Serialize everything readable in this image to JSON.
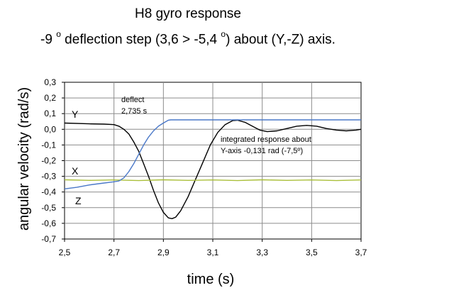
{
  "chart_data": {
    "type": "line",
    "title_line1": "H8 gyro response",
    "title_line2": {
      "part1": "-9 ",
      "sup1": "o",
      "part2": " deflection step (3,6 > -5,4 ",
      "sup2": "o",
      "part3": ") about (Y,-Z) axis."
    },
    "xlabel": "time (s)",
    "ylabel": "angular velocity (rad/s)",
    "xlim": [
      2.5,
      3.7
    ],
    "ylim": [
      -0.7,
      0.3
    ],
    "x_ticks": [
      2.5,
      2.7,
      2.9,
      3.1,
      3.3,
      3.5,
      3.7
    ],
    "x_tick_labels": [
      "2,5",
      "2,7",
      "2,9",
      "3,1",
      "3,3",
      "3,5",
      "3,7"
    ],
    "y_ticks": [
      0.3,
      0.2,
      0.1,
      0.0,
      -0.1,
      -0.2,
      -0.3,
      -0.4,
      -0.5,
      -0.6,
      -0.7
    ],
    "y_tick_labels": [
      "0,3",
      "0,2",
      "0,1",
      "0,0",
      "-0,1",
      "-0,2",
      "-0,3",
      "-0,4",
      "-0,5",
      "-0,6",
      "-0,7"
    ],
    "grid": true,
    "series": [
      {
        "name": "Y",
        "color": "#000000",
        "points": [
          [
            2.5,
            0.04
          ],
          [
            2.6,
            0.035
          ],
          [
            2.66,
            0.033
          ],
          [
            2.7,
            0.03
          ],
          [
            2.72,
            0.02
          ],
          [
            2.74,
            0.0
          ],
          [
            2.76,
            -0.03
          ],
          [
            2.78,
            -0.08
          ],
          [
            2.8,
            -0.14
          ],
          [
            2.82,
            -0.22
          ],
          [
            2.84,
            -0.3
          ],
          [
            2.86,
            -0.39
          ],
          [
            2.88,
            -0.47
          ],
          [
            2.9,
            -0.53
          ],
          [
            2.92,
            -0.565
          ],
          [
            2.935,
            -0.57
          ],
          [
            2.95,
            -0.56
          ],
          [
            2.97,
            -0.52
          ],
          [
            3.0,
            -0.43
          ],
          [
            3.03,
            -0.32
          ],
          [
            3.06,
            -0.21
          ],
          [
            3.09,
            -0.1
          ],
          [
            3.12,
            -0.02
          ],
          [
            3.15,
            0.03
          ],
          [
            3.18,
            0.055
          ],
          [
            3.2,
            0.058
          ],
          [
            3.23,
            0.045
          ],
          [
            3.26,
            0.02
          ],
          [
            3.29,
            -0.005
          ],
          [
            3.32,
            -0.015
          ],
          [
            3.36,
            -0.01
          ],
          [
            3.4,
            0.005
          ],
          [
            3.44,
            0.02
          ],
          [
            3.48,
            0.025
          ],
          [
            3.52,
            0.02
          ],
          [
            3.56,
            0.005
          ],
          [
            3.6,
            -0.005
          ],
          [
            3.64,
            -0.01
          ],
          [
            3.68,
            -0.005
          ],
          [
            3.7,
            0.0
          ]
        ]
      },
      {
        "name": "X",
        "color": "#aabf3a",
        "points": [
          [
            2.5,
            -0.322
          ],
          [
            2.6,
            -0.326
          ],
          [
            2.7,
            -0.323
          ],
          [
            2.8,
            -0.327
          ],
          [
            2.9,
            -0.322
          ],
          [
            3.0,
            -0.326
          ],
          [
            3.1,
            -0.323
          ],
          [
            3.2,
            -0.327
          ],
          [
            3.3,
            -0.322
          ],
          [
            3.4,
            -0.326
          ],
          [
            3.5,
            -0.323
          ],
          [
            3.6,
            -0.327
          ],
          [
            3.7,
            -0.323
          ]
        ]
      },
      {
        "name": "Z",
        "color": "#4a78c8",
        "points": [
          [
            2.5,
            -0.38
          ],
          [
            2.55,
            -0.37
          ],
          [
            2.6,
            -0.355
          ],
          [
            2.65,
            -0.345
          ],
          [
            2.7,
            -0.335
          ],
          [
            2.72,
            -0.33
          ],
          [
            2.74,
            -0.31
          ],
          [
            2.76,
            -0.27
          ],
          [
            2.78,
            -0.22
          ],
          [
            2.8,
            -0.16
          ],
          [
            2.82,
            -0.1
          ],
          [
            2.84,
            -0.05
          ],
          [
            2.86,
            -0.01
          ],
          [
            2.88,
            0.02
          ],
          [
            2.9,
            0.04
          ],
          [
            2.92,
            0.058
          ],
          [
            2.93,
            0.06
          ],
          [
            3.0,
            0.06
          ],
          [
            3.2,
            0.06
          ],
          [
            3.4,
            0.06
          ],
          [
            3.6,
            0.06
          ],
          [
            3.7,
            0.06
          ]
        ]
      }
    ],
    "annotations": {
      "deflect_line1": "deflect",
      "deflect_line2": "2,735 s",
      "integrated_line1": "integrated response about",
      "integrated_line2": "Y-axis -0,131 rad (-7,5º)"
    }
  }
}
